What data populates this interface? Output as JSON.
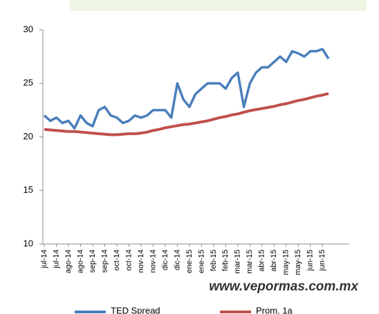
{
  "chart_data": {
    "type": "line",
    "categories": [
      "jul-14",
      null,
      "jul-14",
      null,
      "ago-14",
      null,
      "ago-14",
      null,
      "sep-14",
      null,
      "sep-14",
      null,
      "oct-14",
      null,
      "oct-14",
      null,
      "nov-14",
      null,
      "nov-14",
      null,
      "dic-14",
      null,
      "dic-14",
      null,
      "ene-15",
      null,
      "ene-15",
      null,
      "feb-15",
      null,
      "feb-15",
      null,
      "mar-15",
      null,
      "mar-15",
      null,
      "abr-15",
      null,
      "abr-15",
      null,
      "may-15",
      null,
      "may-15",
      null,
      "jun-15",
      null,
      "jun-15",
      null
    ],
    "series": [
      {
        "name": "TED Spread",
        "color": "#4a7ebb",
        "values": [
          22.0,
          21.5,
          21.8,
          21.3,
          21.5,
          20.8,
          22.0,
          21.3,
          21.0,
          22.5,
          22.8,
          22.0,
          21.8,
          21.3,
          21.5,
          22.0,
          21.8,
          22.0,
          22.5,
          22.5,
          22.5,
          21.8,
          25.0,
          23.5,
          22.8,
          24.0,
          24.5,
          25.0,
          25.0,
          25.0,
          24.5,
          25.5,
          26.0,
          22.8,
          25.0,
          26.0,
          26.5,
          26.5,
          27.0,
          27.5,
          27.0,
          28.0,
          27.8,
          27.5,
          28.0,
          28.0,
          28.2,
          27.3
        ]
      },
      {
        "name": "Prom. 1a",
        "color": "#c0504d",
        "values": [
          20.7,
          20.65,
          20.6,
          20.55,
          20.5,
          20.5,
          20.45,
          20.4,
          20.35,
          20.3,
          20.25,
          20.2,
          20.2,
          20.25,
          20.3,
          20.3,
          20.35,
          20.45,
          20.6,
          20.7,
          20.85,
          20.95,
          21.05,
          21.15,
          21.2,
          21.3,
          21.4,
          21.5,
          21.65,
          21.8,
          21.9,
          22.05,
          22.15,
          22.3,
          22.45,
          22.55,
          22.65,
          22.75,
          22.85,
          23.0,
          23.1,
          23.25,
          23.4,
          23.5,
          23.65,
          23.8,
          23.9,
          24.05
        ]
      }
    ],
    "ylim": [
      10,
      30
    ],
    "yticks": [
      10,
      15,
      20,
      25,
      30
    ],
    "annotation": "www.vepormas.com.mx"
  }
}
